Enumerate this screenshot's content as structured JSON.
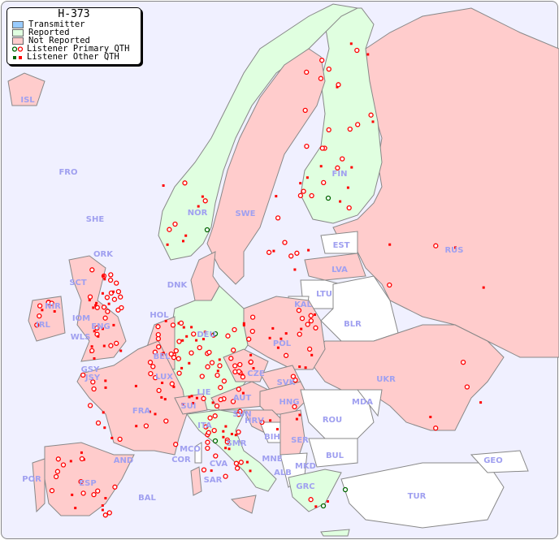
{
  "legend": {
    "title": "H-373",
    "items": [
      {
        "label": "Transmitter",
        "color": "#99ccff"
      },
      {
        "label": "Reported",
        "color": "#e0ffe0"
      },
      {
        "label": "Not Reported",
        "color": "#ffcccc"
      },
      {
        "label": "Listener Primary QTH",
        "colors": [
          "#006600",
          "#ff0000"
        ]
      },
      {
        "label": "Listener Other QTH",
        "colors": [
          "#006600",
          "#ff0000"
        ]
      }
    ]
  },
  "colors": {
    "sea": "#f0f0ff",
    "reported": "#e0ffe0",
    "not_reported": "#ffcccc",
    "other": "#ffffff",
    "label": "#a0a0f0",
    "marker": "#ff0000"
  },
  "countries": {
    "ISL": "ISL",
    "FRO": "FRO",
    "SHE": "SHE",
    "ORK": "ORK",
    "SCT": "SCT",
    "NIR": "NIR",
    "IRL": "IRL",
    "IOM": "IOM",
    "ENG": "ENG",
    "WLS": "WLS",
    "GSY": "GSY",
    "JSY": "JSY",
    "HOL": "HOL",
    "BEL": "BEL",
    "LUX": "LUX",
    "DNK": "DNK",
    "DEU": "DEU",
    "LIE": "LIE",
    "SUI": "SUI",
    "AUT": "AUT",
    "CZE": "CZE",
    "SVK": "SVK",
    "HNG": "HNG",
    "POL": "POL",
    "FRA": "FRA",
    "AND": "AND",
    "ESP": "ESP",
    "POR": "POR",
    "BAL": "BAL",
    "MCO": "MCO",
    "COR": "COR",
    "SAR": "SAR",
    "ITA": "ITA",
    "SMR": "SMR",
    "CVA": "CVA",
    "SVN": "SVN",
    "HRV": "HRV",
    "BIH": "BIH",
    "SER": "SER",
    "MNE": "MNE",
    "ALB": "ALB",
    "MKD": "MKD",
    "GRC": "GRC",
    "ROU": "ROU",
    "BUL": "BUL",
    "MDA": "MDA",
    "UKR": "UKR",
    "BLR": "BLR",
    "LTU": "LTU",
    "KAL": "KAL",
    "LVA": "LVA",
    "EST": "EST",
    "FIN": "FIN",
    "SWE": "SWE",
    "NOR": "NOR",
    "RUS": "RUS",
    "GEO": "GEO",
    "TUR": "TUR"
  }
}
